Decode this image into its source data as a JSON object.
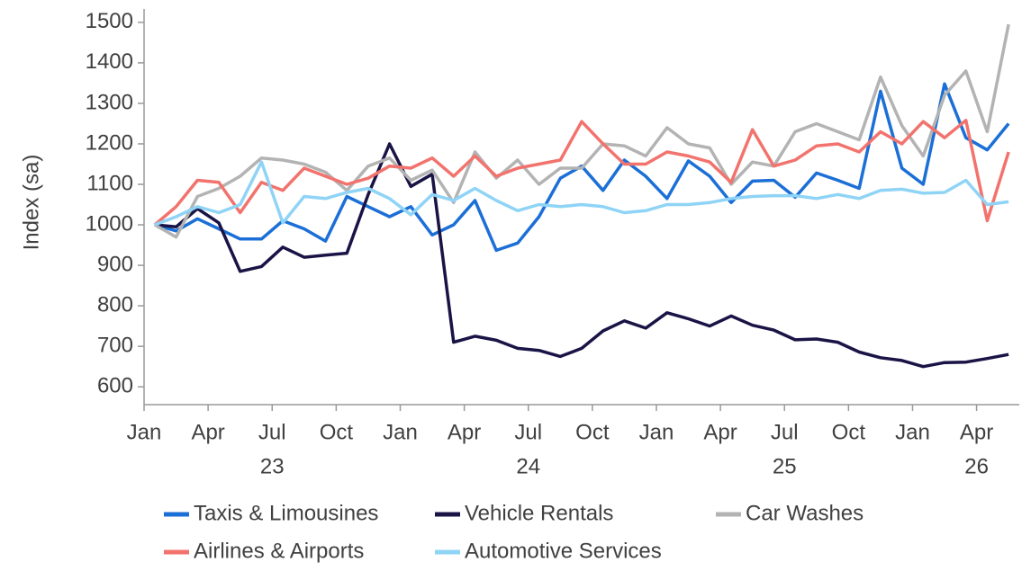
{
  "chart_data": {
    "type": "line",
    "y_label": "Index (sa)",
    "categories": [
      "Jan",
      null,
      null,
      "Apr",
      null,
      null,
      "Jul",
      null,
      null,
      "Oct",
      null,
      null,
      "Jan",
      null,
      null,
      "Apr",
      null,
      null,
      "Jul",
      null,
      null,
      "Oct",
      null,
      null,
      "Jan",
      null,
      null,
      "Apr",
      null,
      null,
      "Jul",
      null,
      null,
      "Oct",
      null,
      null,
      "Jan",
      null,
      null,
      "Apr",
      null
    ],
    "year_labels": [
      null,
      null,
      null,
      null,
      null,
      null,
      "23",
      null,
      null,
      null,
      null,
      null,
      null,
      null,
      null,
      null,
      null,
      null,
      "24",
      null,
      null,
      null,
      null,
      null,
      null,
      null,
      null,
      null,
      null,
      null,
      "25",
      null,
      null,
      null,
      null,
      null,
      null,
      null,
      null,
      "26",
      null
    ],
    "ylim": [
      556,
      1533
    ],
    "yticks": [
      600,
      700,
      800,
      900,
      1000,
      1100,
      1200,
      1300,
      1400,
      1500
    ],
    "grid": false,
    "legend": "bottom",
    "series": [
      {
        "name": "Taxis & Limousines",
        "color": "#1b6fd6",
        "values": [
          1000,
          985,
          1015,
          990,
          965,
          965,
          1010,
          990,
          960,
          1070,
          1045,
          1020,
          1045,
          975,
          1000,
          1060,
          937,
          955,
          1020,
          1115,
          1145,
          1085,
          1160,
          1120,
          1065,
          1158,
          1120,
          1055,
          1108,
          1110,
          1068,
          1128,
          1110,
          1090,
          1330,
          1140,
          1100,
          1348,
          1215,
          1185,
          1250
        ]
      },
      {
        "name": "Vehicle Rentals",
        "color": "#1a1446",
        "values": [
          1000,
          995,
          1040,
          1005,
          885,
          897,
          945,
          920,
          925,
          930,
          1075,
          1200,
          1095,
          1125,
          710,
          725,
          715,
          695,
          690,
          675,
          695,
          738,
          763,
          745,
          783,
          768,
          750,
          775,
          752,
          740,
          716,
          718,
          710,
          686,
          672,
          665,
          650,
          660,
          661,
          670,
          680
        ]
      },
      {
        "name": "Car Washes",
        "color": "#b3b3b3",
        "values": [
          1000,
          970,
          1070,
          1090,
          1120,
          1165,
          1160,
          1150,
          1130,
          1085,
          1145,
          1165,
          1110,
          1135,
          1055,
          1180,
          1115,
          1160,
          1100,
          1140,
          1140,
          1200,
          1195,
          1170,
          1240,
          1200,
          1190,
          1100,
          1155,
          1145,
          1230,
          1250,
          1230,
          1210,
          1365,
          1245,
          1170,
          1320,
          1380,
          1230,
          1495
        ]
      },
      {
        "name": "Airlines & Airports",
        "color": "#f2736d",
        "values": [
          1000,
          1045,
          1110,
          1105,
          1030,
          1105,
          1085,
          1140,
          1120,
          1100,
          1115,
          1145,
          1140,
          1165,
          1120,
          1170,
          1120,
          1140,
          1150,
          1160,
          1255,
          1200,
          1150,
          1150,
          1180,
          1170,
          1155,
          1105,
          1235,
          1145,
          1160,
          1195,
          1200,
          1180,
          1230,
          1200,
          1255,
          1215,
          1258,
          1010,
          1180
        ]
      },
      {
        "name": "Automotive Services",
        "color": "#8fd4f6",
        "values": [
          1000,
          1020,
          1045,
          1030,
          1050,
          1155,
          1005,
          1070,
          1065,
          1080,
          1090,
          1065,
          1025,
          1075,
          1060,
          1090,
          1060,
          1035,
          1050,
          1045,
          1050,
          1045,
          1030,
          1035,
          1050,
          1050,
          1055,
          1065,
          1070,
          1072,
          1072,
          1065,
          1075,
          1065,
          1085,
          1088,
          1078,
          1080,
          1110,
          1050,
          1057
        ]
      }
    ]
  }
}
